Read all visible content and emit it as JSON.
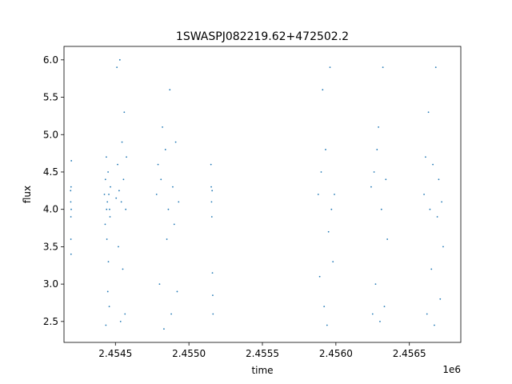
{
  "chart_data": {
    "type": "scatter",
    "title": "1SWASPJ082219.62+472502.2",
    "xlabel": "time",
    "ylabel": "flux",
    "x_offset_label": "1e6",
    "xlim": [
      2454150,
      2456850
    ],
    "ylim": [
      2.22,
      6.18
    ],
    "grid": false,
    "legend": "none",
    "color": "#1f77b4",
    "x_ticks": [
      2454500,
      2455000,
      2455500,
      2456000,
      2456500
    ],
    "x_tick_labels": [
      "2.4545",
      "2.4550",
      "2.4555",
      "2.4560",
      "2.4565"
    ],
    "y_ticks": [
      2.5,
      3.0,
      3.5,
      4.0,
      4.5,
      5.0,
      5.5,
      6.0
    ],
    "y_tick_labels": [
      "2.5",
      "3.0",
      "3.5",
      "4.0",
      "4.5",
      "5.0",
      "5.5",
      "6.0"
    ],
    "series": [
      {
        "x": [
          2454195,
          2454196,
          2454197,
          2454197,
          2454198,
          2454198,
          2454199,
          2454200,
          2454425,
          2454430,
          2454432,
          2454435,
          2454438,
          2454440,
          2454442,
          2454445,
          2454448,
          2454450,
          2454452,
          2454455,
          2454458,
          2454460,
          2454463,
          2454466,
          2454505,
          2454510,
          2454515,
          2454520,
          2454525,
          2454530,
          2454535,
          2454540,
          2454545,
          2454550,
          2454555,
          2454560,
          2454565,
          2454570,
          2454575,
          2454780,
          2454790,
          2454800,
          2454810,
          2454820,
          2454830,
          2454840,
          2454850,
          2454860,
          2454870,
          2454880,
          2454890,
          2454900,
          2454910,
          2454920,
          2454930,
          2455150,
          2455152,
          2455154,
          2455156,
          2455158,
          2455160,
          2455162,
          2455164,
          2455880,
          2455890,
          2455900,
          2455910,
          2455920,
          2455930,
          2455940,
          2455950,
          2455960,
          2455970,
          2455980,
          2455990,
          2456240,
          2456250,
          2456260,
          2456270,
          2456280,
          2456290,
          2456300,
          2456310,
          2456320,
          2456330,
          2456340,
          2456350,
          2456600,
          2456610,
          2456620,
          2456630,
          2456640,
          2456650,
          2456660,
          2456670,
          2456680,
          2456690,
          2456700,
          2456710,
          2456720,
          2456730
        ],
        "y": [
          4.25,
          4.1,
          3.9,
          3.6,
          4.3,
          3.4,
          4.0,
          4.65,
          4.2,
          3.8,
          4.4,
          2.45,
          4.7,
          4.0,
          3.6,
          4.1,
          2.9,
          4.5,
          3.3,
          4.2,
          2.7,
          4.0,
          3.9,
          4.3,
          4.15,
          5.9,
          4.6,
          3.5,
          4.25,
          6.0,
          2.5,
          4.1,
          4.9,
          3.2,
          4.4,
          5.3,
          2.6,
          4.0,
          4.7,
          4.2,
          4.6,
          3.0,
          4.4,
          5.1,
          2.4,
          4.8,
          3.6,
          4.0,
          5.6,
          2.6,
          4.3,
          3.8,
          4.9,
          2.9,
          4.1,
          4.6,
          4.3,
          4.1,
          3.9,
          4.25,
          3.15,
          2.85,
          2.6,
          4.2,
          3.1,
          4.5,
          5.6,
          2.7,
          4.8,
          2.45,
          3.7,
          5.9,
          4.0,
          3.3,
          4.2,
          4.3,
          2.6,
          4.5,
          3.0,
          4.8,
          5.1,
          2.5,
          4.0,
          5.9,
          2.7,
          4.4,
          3.6,
          4.2,
          4.7,
          2.6,
          5.3,
          4.0,
          3.2,
          4.6,
          2.45,
          5.9,
          3.9,
          4.4,
          2.8,
          4.1,
          3.5
        ]
      }
    ]
  }
}
